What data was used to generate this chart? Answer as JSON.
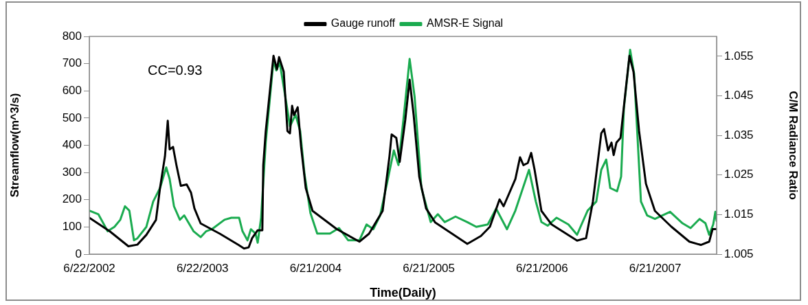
{
  "chart_data": {
    "type": "line",
    "xlabel": "Time(Daily)",
    "ylabel": "Streamflow(m^3/s)",
    "y2label": "C/M Radiance Ratio",
    "annotations": [
      "CC=0.93"
    ],
    "xlim": [
      "2002-06-22",
      "2008-01-05"
    ],
    "xticks": [
      {
        "value": "2002-06-22",
        "label": "6/22/2002"
      },
      {
        "value": "2003-06-22",
        "label": "6/22/2003"
      },
      {
        "value": "2004-06-21",
        "label": "6/21/2004"
      },
      {
        "value": "2005-06-21",
        "label": "6/21/2005"
      },
      {
        "value": "2006-06-21",
        "label": "6/21/2006"
      },
      {
        "value": "2007-06-21",
        "label": "6/21/2007"
      }
    ],
    "ylim": [
      0,
      800
    ],
    "yticks": [
      0,
      100,
      200,
      300,
      400,
      500,
      600,
      700,
      800
    ],
    "y2lim": [
      1.005,
      1.06
    ],
    "y2ticks": [
      1.005,
      1.015,
      1.025,
      1.035,
      1.045,
      1.055
    ],
    "grid": false,
    "legend": "top",
    "marker": "none",
    "line_style": "solid",
    "series": [
      {
        "name": "Gauge runoff",
        "color": "#000000",
        "x": [
          "2002-06-22",
          "2002-08-27",
          "2002-10-26",
          "2002-11-24",
          "2002-12-23",
          "2003-01-23",
          "2003-02-05",
          "2003-02-21",
          "2003-03-02",
          "2003-03-08",
          "2003-03-19",
          "2003-03-30",
          "2003-04-13",
          "2003-05-02",
          "2003-05-16",
          "2003-05-27",
          "2003-06-16",
          "2003-08-17",
          "2003-10-16",
          "2003-11-03",
          "2003-11-18",
          "2003-11-29",
          "2003-12-17",
          "2004-01-01",
          "2004-01-04",
          "2004-01-12",
          "2004-02-06",
          "2004-02-17",
          "2004-02-24",
          "2004-03-10",
          "2004-03-22",
          "2004-03-30",
          "2004-04-06",
          "2004-04-12",
          "2004-04-24",
          "2004-05-05",
          "2004-05-20",
          "2004-06-11",
          "2004-08-28",
          "2004-11-09",
          "2004-12-10",
          "2005-01-23",
          "2005-02-14",
          "2005-02-21",
          "2005-03-08",
          "2005-03-19",
          "2005-04-06",
          "2005-04-20",
          "2005-05-03",
          "2005-05-21",
          "2005-06-12",
          "2005-07-11",
          "2005-10-23",
          "2005-12-06",
          "2006-01-04",
          "2006-02-04",
          "2006-02-17",
          "2006-03-27",
          "2006-04-11",
          "2006-04-22",
          "2006-05-06",
          "2006-05-17",
          "2006-05-28",
          "2006-06-19",
          "2006-07-22",
          "2006-10-12",
          "2006-11-10",
          "2006-12-02",
          "2006-12-29",
          "2007-01-07",
          "2007-01-20",
          "2007-01-31",
          "2007-02-07",
          "2007-02-16",
          "2007-03-01",
          "2007-03-17",
          "2007-03-30",
          "2007-04-12",
          "2007-04-30",
          "2007-05-22",
          "2007-06-20",
          "2007-08-12",
          "2007-10-09",
          "2007-11-15",
          "2007-12-12",
          "2007-12-23",
          "2008-01-03"
        ],
        "values": [
          134,
          84,
          29,
          35,
          71,
          126,
          243,
          360,
          490,
          385,
          394,
          327,
          251,
          256,
          226,
          168,
          113,
          75,
          34,
          21,
          25,
          59,
          88,
          88,
          327,
          452,
          729,
          679,
          724,
          670,
          452,
          444,
          545,
          511,
          540,
          394,
          243,
          159,
          92,
          46,
          75,
          159,
          360,
          440,
          427,
          339,
          494,
          641,
          511,
          285,
          168,
          117,
          38,
          67,
          101,
          201,
          176,
          276,
          356,
          327,
          335,
          372,
          310,
          159,
          109,
          50,
          59,
          193,
          444,
          460,
          381,
          410,
          364,
          410,
          427,
          595,
          729,
          670,
          452,
          259,
          159,
          101,
          46,
          34,
          46,
          92,
          92
        ]
      },
      {
        "name": "AMSR-E Signal",
        "color": "#1aab4f",
        "axis": "y2",
        "x": [
          "2002-06-22",
          "2002-07-21",
          "2002-08-20",
          "2002-09-11",
          "2002-09-30",
          "2002-10-15",
          "2002-10-29",
          "2002-11-13",
          "2002-11-24",
          "2002-12-23",
          "2003-01-14",
          "2003-02-05",
          "2003-02-25",
          "2003-03-08",
          "2003-03-22",
          "2003-04-10",
          "2003-04-24",
          "2003-05-24",
          "2003-06-16",
          "2003-07-04",
          "2003-07-22",
          "2003-09-01",
          "2003-09-23",
          "2003-10-18",
          "2003-10-29",
          "2003-11-14",
          "2003-11-25",
          "2003-12-10",
          "2003-12-17",
          "2003-12-28",
          "2004-01-12",
          "2004-02-06",
          "2004-02-15",
          "2004-02-26",
          "2004-03-15",
          "2004-03-30",
          "2004-04-17",
          "2004-05-02",
          "2004-05-16",
          "2004-06-04",
          "2004-06-26",
          "2004-08-06",
          "2004-09-04",
          "2004-10-04",
          "2004-11-09",
          "2004-12-02",
          "2004-12-24",
          "2005-01-15",
          "2005-02-06",
          "2005-02-28",
          "2005-03-15",
          "2005-03-31",
          "2005-04-20",
          "2005-05-06",
          "2005-05-28",
          "2005-06-27",
          "2005-07-20",
          "2005-08-11",
          "2005-09-15",
          "2005-10-23",
          "2005-11-21",
          "2005-12-28",
          "2006-01-24",
          "2006-02-28",
          "2006-03-27",
          "2006-05-10",
          "2006-06-01",
          "2006-06-19",
          "2006-07-09",
          "2006-08-07",
          "2006-09-14",
          "2006-10-12",
          "2006-10-23",
          "2006-11-15",
          "2006-12-13",
          "2006-12-29",
          "2007-01-14",
          "2007-01-27",
          "2007-02-18",
          "2007-03-03",
          "2007-03-12",
          "2007-04-01",
          "2007-04-14",
          "2007-05-06",
          "2007-05-26",
          "2007-06-20",
          "2007-08-08",
          "2007-09-17",
          "2007-10-13",
          "2007-11-11",
          "2007-11-30",
          "2007-12-12",
          "2007-12-25",
          "2008-01-01",
          "2008-01-05"
        ],
        "values": [
          1.016,
          1.0151,
          1.0108,
          1.0119,
          1.0137,
          1.0171,
          1.016,
          1.0085,
          1.009,
          1.0119,
          1.0183,
          1.0217,
          1.0269,
          1.024,
          1.0171,
          1.0137,
          1.0148,
          1.0108,
          1.0093,
          1.0108,
          1.0113,
          1.0137,
          1.0142,
          1.0142,
          1.0108,
          1.0085,
          1.0113,
          1.0102,
          1.0079,
          1.0142,
          1.0333,
          1.054,
          1.0514,
          1.0534,
          1.0448,
          1.0373,
          1.0402,
          1.0361,
          1.0252,
          1.0154,
          1.0102,
          1.0102,
          1.0116,
          1.0085,
          1.0085,
          1.0125,
          1.0113,
          1.0148,
          1.0229,
          1.0312,
          1.0275,
          1.039,
          1.0543,
          1.0448,
          1.0217,
          1.0131,
          1.0151,
          1.0131,
          1.0145,
          1.0131,
          1.0119,
          1.0125,
          1.0165,
          1.0113,
          1.016,
          1.0263,
          1.0183,
          1.0131,
          1.0122,
          1.0142,
          1.0125,
          1.0099,
          1.0119,
          1.016,
          1.0183,
          1.0263,
          1.0289,
          1.0217,
          1.0209,
          1.0246,
          1.0419,
          1.0566,
          1.0506,
          1.0183,
          1.0148,
          1.0139,
          1.0157,
          1.0128,
          1.0116,
          1.0139,
          1.0128,
          1.0099,
          1.0125,
          1.0157,
          1.0134
        ]
      }
    ]
  }
}
